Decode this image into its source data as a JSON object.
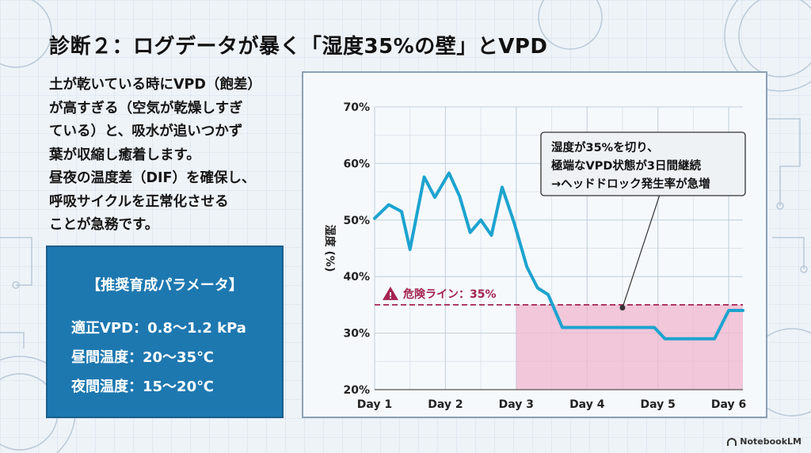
{
  "title": "診断２：ログデータが暴く「湿度35%の壁」とVPD",
  "body_lines": [
    "土が乾いている時にVPD（飽差）",
    "が高すぎる（空気が乾燥しすぎ",
    "ている）と、吸水が追いつかず",
    "葉が収縮し癒着します。",
    "昼夜の温度差（DIF）を確保し、",
    "呼吸サイクルを正常化させる",
    "ことが急務です。"
  ],
  "params": {
    "title": "【推奨育成パラメータ】",
    "rows": [
      "適正VPD：0.8～1.2 kPa",
      "昼間温度：20～35℃",
      "夜間温度：15～20℃"
    ]
  },
  "colors": {
    "line": "#1da3cf",
    "danger": "#a3244f",
    "shade": "#f0b6cd",
    "box": "#1e78b0"
  },
  "chart_data": {
    "type": "line",
    "ylabel": "湿度 (%)",
    "ylim": [
      20,
      70
    ],
    "yticks": [
      20,
      30,
      40,
      50,
      60,
      70
    ],
    "ytick_labels": [
      "20%",
      "30%",
      "40%",
      "50%",
      "60%",
      "70%"
    ],
    "xlim": [
      1,
      6.2
    ],
    "xticks": [
      1,
      2,
      3,
      4,
      5,
      6
    ],
    "xtick_labels": [
      "Day 1",
      "Day 2",
      "Day 3",
      "Day 4",
      "Day 5",
      "Day 6"
    ],
    "grid": true,
    "series": [
      {
        "x": [
          1.0,
          1.2,
          1.38,
          1.5,
          1.7,
          1.85,
          2.05,
          2.2,
          2.35,
          2.5,
          2.65,
          2.8,
          2.97,
          3.15,
          3.3,
          3.45,
          3.65,
          4.0,
          4.5,
          4.95,
          5.1,
          5.35,
          5.6,
          5.8,
          6.0,
          6.2
        ],
        "y": [
          50.3,
          52.7,
          51.5,
          44.8,
          57.6,
          54.0,
          58.3,
          54.2,
          47.8,
          50.0,
          47.3,
          55.8,
          49.5,
          41.7,
          38.0,
          36.8,
          31.0,
          31.0,
          31.0,
          31.0,
          29.0,
          29.0,
          29.0,
          29.0,
          34.0,
          34.0
        ]
      }
    ],
    "threshold": {
      "value": 35,
      "label": "危険ライン：35%"
    },
    "shaded_region": {
      "x_start": 3.0,
      "x_end": 6.2,
      "y_to": 35
    },
    "annotation": {
      "lines": [
        "湿度が35%を切り、",
        "極端なVPD状態が3日間継続",
        "→ヘッドドロック発生率が急増"
      ],
      "point": {
        "x": 4.5,
        "y": 34.5
      }
    }
  },
  "logo_text": "NotebookLM"
}
